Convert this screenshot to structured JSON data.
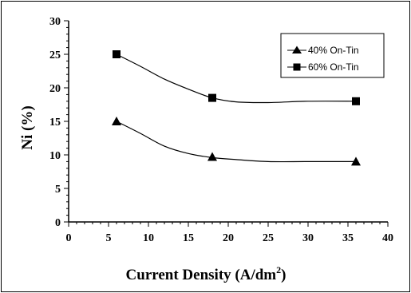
{
  "chart_data": {
    "type": "line",
    "xlabel": "Current Density (A/dm",
    "xlabel_superscript": "2",
    "xlabel_suffix": ")",
    "ylabel": "Ni (%)",
    "xlim": [
      0,
      40
    ],
    "ylim": [
      0,
      30
    ],
    "x_ticks": [
      "0",
      "5",
      "10",
      "15",
      "20",
      "25",
      "30",
      "35",
      "40"
    ],
    "y_ticks": [
      "0",
      "5",
      "10",
      "15",
      "20",
      "25",
      "30"
    ],
    "x_minor_step": 1,
    "y_minor_step": 1,
    "grid": false,
    "legend_position": "top-right",
    "x": [
      6,
      18,
      36
    ],
    "series": [
      {
        "name": "40% On-Tin",
        "marker": "triangle",
        "values": [
          15,
          9.7,
          9
        ],
        "curve": [
          [
            6,
            15
          ],
          [
            9,
            13.2
          ],
          [
            12,
            11.3
          ],
          [
            15,
            10.2
          ],
          [
            18,
            9.6
          ],
          [
            21,
            9.3
          ],
          [
            25,
            9.0
          ],
          [
            30,
            9.0
          ],
          [
            36,
            9.0
          ]
        ]
      },
      {
        "name": "60% On-Tin",
        "marker": "square",
        "values": [
          25,
          18.5,
          18
        ],
        "curve": [
          [
            6,
            25
          ],
          [
            9,
            23.2
          ],
          [
            12,
            21.3
          ],
          [
            15,
            19.8
          ],
          [
            18,
            18.5
          ],
          [
            21,
            17.9
          ],
          [
            25,
            17.8
          ],
          [
            30,
            18.0
          ],
          [
            36,
            18.0
          ]
        ]
      }
    ],
    "color": "#000000"
  }
}
